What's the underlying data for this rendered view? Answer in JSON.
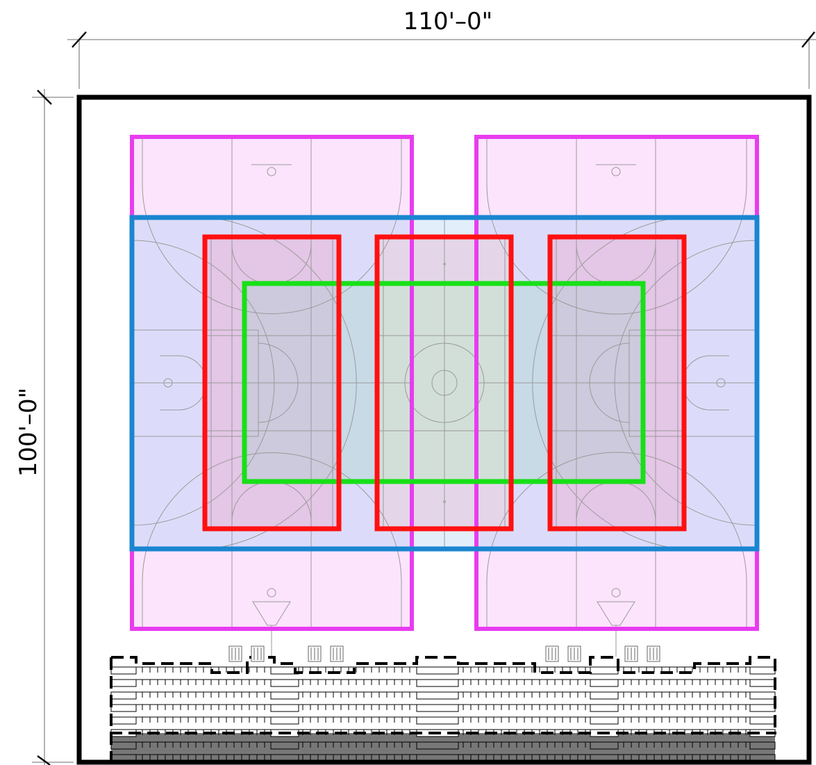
{
  "dimensions": {
    "width_label": "110'–0\"",
    "height_label": "100'–0\""
  },
  "colors": {
    "wall": "#000000",
    "basketball_cross_court": "#e83cf0",
    "basketball_cross_court_fill": "#fce4fc",
    "main_court": "#1a86d0",
    "main_court_fill": "#dcdcfa",
    "volleyball_court": "#ff1010",
    "volleyball_fill": "#e6c8e6",
    "center_court": "#18e018",
    "center_court_fill": "#c8dcd4",
    "seating_lower": "#777777"
  }
}
